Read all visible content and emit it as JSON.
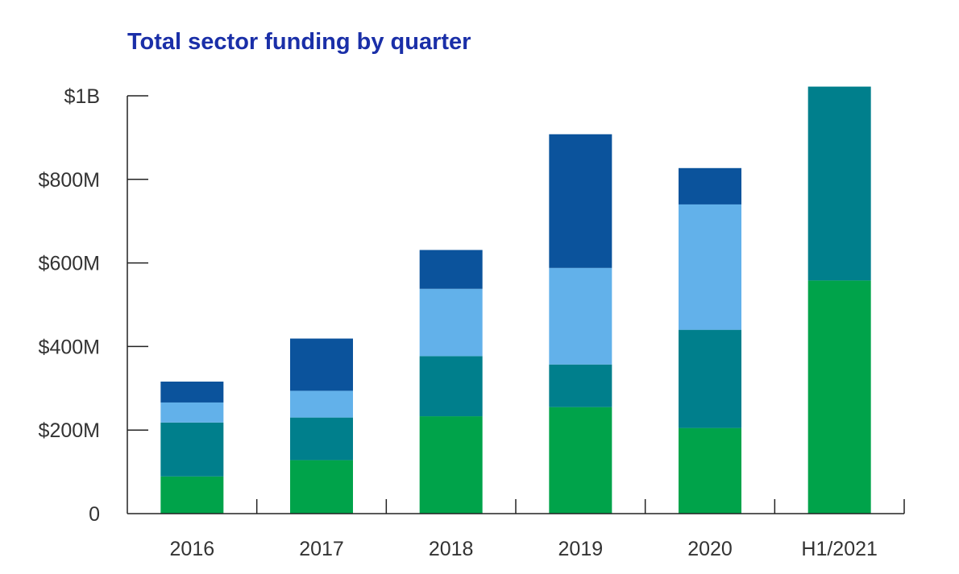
{
  "chart_data": {
    "type": "bar",
    "stacked": true,
    "title": "Total sector funding by quarter",
    "xlabel": "",
    "ylabel": "",
    "categories": [
      "2016",
      "2017",
      "2018",
      "2019",
      "2020",
      "H1/2021"
    ],
    "ylim": [
      0,
      1000
    ],
    "y_unit": "$M",
    "y_ticks": [
      {
        "value": 0,
        "label": "0"
      },
      {
        "value": 200,
        "label": "$200M"
      },
      {
        "value": 400,
        "label": "$400M"
      },
      {
        "value": 600,
        "label": "$600M"
      },
      {
        "value": 800,
        "label": "$800M"
      },
      {
        "value": 1000,
        "label": "$1B"
      }
    ],
    "grid": false,
    "legend": "none",
    "series": [
      {
        "color": "#00a34a",
        "values": [
          89,
          128,
          233,
          255,
          205,
          558
        ]
      },
      {
        "color": "#007f8c",
        "values": [
          129,
          102,
          144,
          102,
          235,
          464
        ]
      },
      {
        "color": "#62b1ea",
        "values": [
          48,
          64,
          161,
          231,
          300,
          0
        ]
      },
      {
        "color": "#0b539c",
        "values": [
          50,
          125,
          93,
          320,
          87,
          0
        ]
      }
    ]
  }
}
